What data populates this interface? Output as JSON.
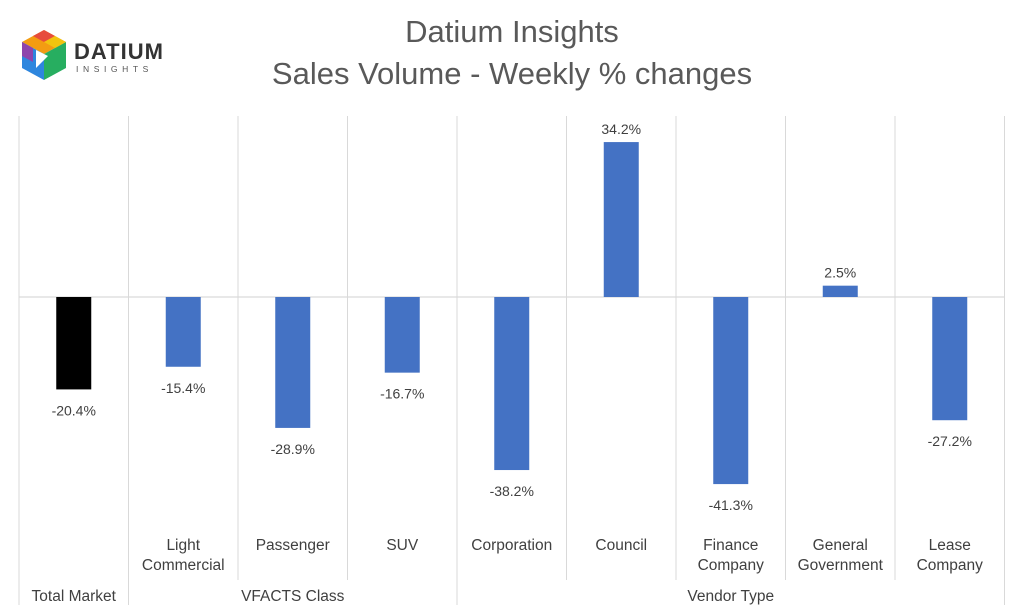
{
  "logo": {
    "word": "DATIUM",
    "sub": "INSIGHTS"
  },
  "title_lines": [
    "Datium Insights",
    "Sales Volume - Weekly % changes"
  ],
  "chart_data": {
    "type": "bar",
    "title": "Datium Insights\nSales Volume - Weekly % changes",
    "categories": [
      [
        "Total Market"
      ],
      [
        "Light",
        "Commercial"
      ],
      [
        "Passenger"
      ],
      [
        "SUV"
      ],
      [
        "Corporation"
      ],
      [
        "Council"
      ],
      [
        "Finance",
        "Company"
      ],
      [
        "General",
        "Government"
      ],
      [
        "Lease",
        "Company"
      ]
    ],
    "groups": [
      {
        "label": "Total Market",
        "start": 0,
        "end": 0
      },
      {
        "label": "VFACTS Class",
        "start": 1,
        "end": 3
      },
      {
        "label": "Vendor Type",
        "start": 4,
        "end": 8
      }
    ],
    "values": [
      -20.4,
      -15.4,
      -28.9,
      -16.7,
      -38.2,
      34.2,
      -41.3,
      2.5,
      -27.2
    ],
    "data_labels": [
      "-20.4%",
      "-15.4%",
      "-28.9%",
      "-16.7%",
      "-38.2%",
      "34.2%",
      "-41.3%",
      "2.5%",
      "-27.2%"
    ],
    "colors": [
      "#000000",
      "#4472c4",
      "#4472c4",
      "#4472c4",
      "#4472c4",
      "#4472c4",
      "#4472c4",
      "#4472c4",
      "#4472c4"
    ],
    "ylim": [
      -50,
      40
    ],
    "grid": false,
    "unit": "%"
  }
}
